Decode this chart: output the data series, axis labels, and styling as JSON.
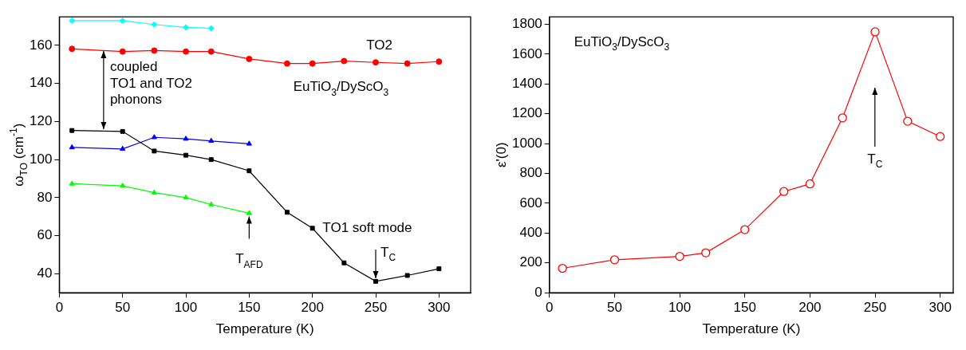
{
  "chart_data": [
    {
      "type": "line",
      "xlabel": "Temperature (K)",
      "ylabel": "ω$_{TO}$ (cm$^{-1}$)",
      "xlim": [
        0,
        325
      ],
      "xticks": [
        0,
        50,
        100,
        150,
        200,
        250,
        300
      ],
      "ylim": [
        30,
        175
      ],
      "yticks": [
        40,
        60,
        80,
        100,
        120,
        140,
        160
      ],
      "grid": false,
      "legend": false,
      "series": [
        {
          "color": "#00ffff",
          "marker": "diamond",
          "x": [
            10,
            50,
            75,
            100,
            120
          ],
          "values": [
            173,
            173,
            171,
            169.5,
            169
          ]
        },
        {
          "color": "#ff0000",
          "marker": "circle",
          "x": [
            10,
            50,
            75,
            100,
            120,
            150,
            180,
            200,
            225,
            250,
            275,
            300
          ],
          "values": [
            158.2,
            156.8,
            157.3,
            156.8,
            156.8,
            152.9,
            150.5,
            150.5,
            151.8,
            151.1,
            150.5,
            151.5
          ]
        },
        {
          "color": "#000000",
          "marker": "square",
          "x": [
            10,
            50,
            75,
            100,
            120,
            150,
            180,
            200,
            225,
            250,
            275,
            300
          ],
          "values": [
            115.3,
            114.8,
            104.5,
            102.3,
            100,
            94.1,
            72.3,
            63.9,
            45.7,
            36,
            39.1,
            42.6
          ]
        },
        {
          "color": "#0000ff",
          "marker": "triangle",
          "x": [
            10,
            50,
            75,
            100,
            120,
            150
          ],
          "values": [
            106.4,
            105.6,
            111.7,
            110.9,
            109.8,
            108.3
          ]
        },
        {
          "color": "#00ff00",
          "marker": "triangle",
          "x": [
            10,
            50,
            75,
            100,
            120,
            150
          ],
          "values": [
            87.3,
            86.2,
            82.6,
            80,
            76.4,
            71.8
          ]
        }
      ],
      "annotations": [
        "TO2",
        {
          "text": "coupled\nTO1 and TO2\nphonons",
          "x": 35,
          "y": 157.1
        },
        "EuTiO$_{3}$/DyScO$_{3}$",
        "TO1 soft mode",
        {
          "text": "T$_{AFD}$",
          "x": 150,
          "y": 71.8
        },
        {
          "text": "T$_{C}$",
          "x": 250,
          "y": 36
        }
      ]
    },
    {
      "type": "line",
      "xlabel": "Temperature (K)",
      "ylabel": "ε'(0)",
      "xlim": [
        0,
        310
      ],
      "xticks": [
        0,
        50,
        100,
        150,
        200,
        250,
        300
      ],
      "ylim": [
        0,
        1850
      ],
      "yticks": [
        0,
        200,
        400,
        600,
        800,
        1000,
        1200,
        1400,
        1600,
        1800
      ],
      "grid": false,
      "legend": false,
      "series": [
        {
          "color": "#ff0000",
          "marker": "circle",
          "x": [
            10,
            50,
            100,
            120,
            150,
            180,
            200,
            225,
            250,
            275,
            300
          ],
          "values": [
            164,
            221,
            244,
            268,
            423,
            679,
            730,
            1173,
            1750,
            1150,
            1048
          ]
        }
      ],
      "annotations": [
        "EuTiO$_{3}$/DyScO$_{3}$",
        "T$_{C}$"
      ]
    }
  ]
}
